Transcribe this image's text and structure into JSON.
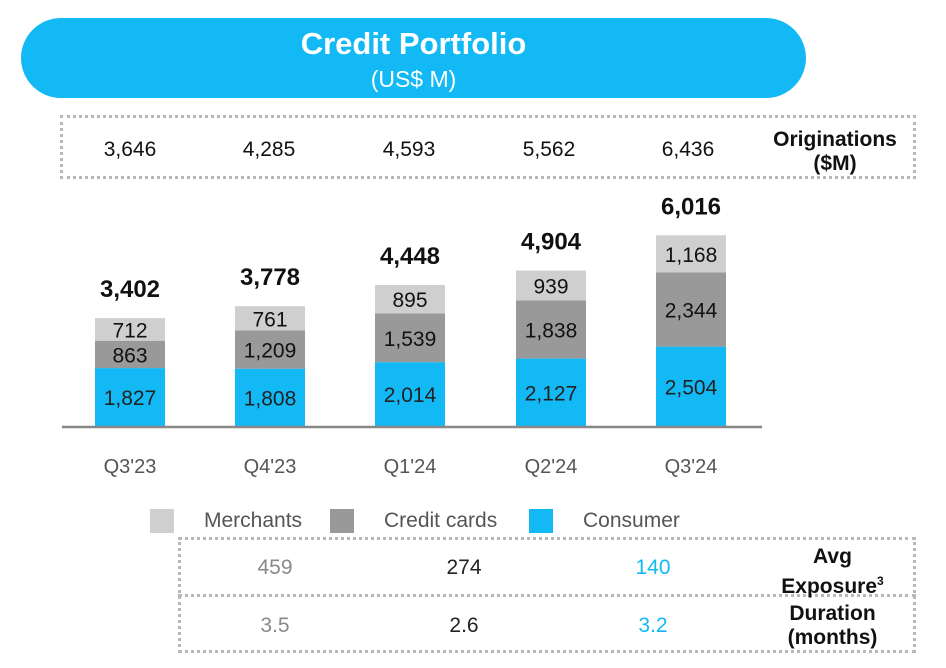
{
  "header": {
    "title": "Credit Portfolio",
    "subtitle": "(US$ M)"
  },
  "originations": {
    "label_line1": "Originations",
    "label_line2": "($M)",
    "values": [
      "3,646",
      "4,285",
      "4,593",
      "5,562",
      "6,436"
    ]
  },
  "colors": {
    "merchants": "#cfcfcf",
    "credit_cards": "#999999",
    "consumer": "#12b9f5",
    "axis": "#888888"
  },
  "chart_data": {
    "type": "bar",
    "stacked": true,
    "categories": [
      "Q3'23",
      "Q4'23",
      "Q1'24",
      "Q2'24",
      "Q3'24"
    ],
    "series": [
      {
        "name": "Consumer",
        "values": [
          1827,
          1808,
          2014,
          2127,
          2504
        ],
        "labels": [
          "1,827",
          "1,808",
          "2,014",
          "2,127",
          "2,504"
        ]
      },
      {
        "name": "Credit cards",
        "values": [
          863,
          1209,
          1539,
          1838,
          2344
        ],
        "labels": [
          "863",
          "1,209",
          "1,539",
          "1,838",
          "2,344"
        ]
      },
      {
        "name": "Merchants",
        "values": [
          712,
          761,
          895,
          939,
          1168
        ],
        "labels": [
          "712",
          "761",
          "895",
          "939",
          "1,168"
        ]
      }
    ],
    "totals": [
      3402,
      3778,
      4448,
      4904,
      6016
    ],
    "total_labels": [
      "3,402",
      "3,778",
      "4,448",
      "4,904",
      "6,016"
    ],
    "legend": {
      "position": "bottom",
      "items": [
        "Merchants",
        "Credit cards",
        "Consumer"
      ]
    }
  },
  "metrics": {
    "avg_exposure": {
      "label_line1": "Avg",
      "label_line2": "Exposure",
      "superscript": "3",
      "values": [
        "459",
        "274",
        "140"
      ]
    },
    "duration": {
      "label_line1": "Duration",
      "label_line2": "(months)",
      "values": [
        "3.5",
        "2.6",
        "3.2"
      ]
    }
  }
}
